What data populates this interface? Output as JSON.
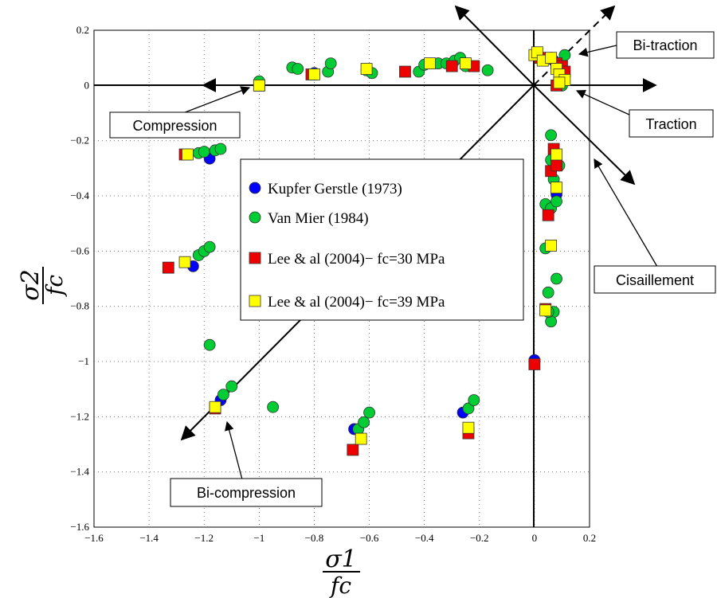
{
  "chart_data": {
    "type": "scatter",
    "xlabel": {
      "num": "σ1",
      "den": "fc"
    },
    "ylabel": {
      "num": "σ2",
      "den": "fc"
    },
    "xlim": [
      -1.6,
      0.2
    ],
    "ylim": [
      -1.6,
      0.2
    ],
    "xticks": [
      "−1.6",
      "−1.4",
      "−1.2",
      "−1",
      "−0.8",
      "−0.6",
      "−0.4",
      "−0.2",
      "0",
      "0.2"
    ],
    "yticks": [
      "0.2",
      "0",
      "−0.2",
      "−0.4",
      "−0.6",
      "−0.8",
      "−1",
      "−1.2",
      "−1.4",
      "−1.6"
    ],
    "grid": true,
    "legend_position": "center",
    "series": [
      {
        "name": "Kupfer Gerstle (1973)",
        "marker": "circle",
        "color": "#0000ff",
        "points": [
          [
            -1.18,
            -0.265
          ],
          [
            -1.24,
            -0.655
          ],
          [
            -1.14,
            -1.14
          ],
          [
            -0.655,
            -1.245
          ],
          [
            -0.26,
            -1.185
          ],
          [
            0,
            -0.995
          ],
          [
            0.08,
            -0.395
          ],
          [
            0.07,
            0.09
          ],
          [
            -0.35,
            0.08
          ],
          [
            -0.8,
            0.045
          ],
          [
            -1.0,
            0.0
          ]
        ]
      },
      {
        "name": "Van Mier (1984)",
        "marker": "circle",
        "color": "#00cc33",
        "points": [
          [
            -1.0,
            0.015
          ],
          [
            -0.88,
            0.065
          ],
          [
            -0.86,
            0.06
          ],
          [
            -0.8,
            0.04
          ],
          [
            -0.75,
            0.05
          ],
          [
            -0.74,
            0.08
          ],
          [
            -0.61,
            0.055
          ],
          [
            -0.59,
            0.045
          ],
          [
            -0.42,
            0.05
          ],
          [
            -0.4,
            0.075
          ],
          [
            -0.35,
            0.08
          ],
          [
            -0.32,
            0.08
          ],
          [
            -0.29,
            0.09
          ],
          [
            -0.27,
            0.1
          ],
          [
            -0.25,
            0.07
          ],
          [
            -0.17,
            0.055
          ],
          [
            -1.22,
            -0.245
          ],
          [
            -1.2,
            -0.24
          ],
          [
            -1.16,
            -0.235
          ],
          [
            -1.14,
            -0.23
          ],
          [
            -1.22,
            -0.615
          ],
          [
            -1.2,
            -0.6
          ],
          [
            -1.18,
            -0.585
          ],
          [
            -1.18,
            -0.94
          ],
          [
            -1.13,
            -1.12
          ],
          [
            -1.1,
            -1.09
          ],
          [
            -0.95,
            -1.165
          ],
          [
            -0.64,
            -1.245
          ],
          [
            -0.62,
            -1.22
          ],
          [
            -0.6,
            -1.185
          ],
          [
            -0.24,
            -1.17
          ],
          [
            -0.22,
            -1.14
          ],
          [
            0.06,
            -0.18
          ],
          [
            0.06,
            -0.27
          ],
          [
            0.09,
            -0.29
          ],
          [
            0.07,
            -0.34
          ],
          [
            0.04,
            -0.43
          ],
          [
            0.06,
            -0.445
          ],
          [
            0.08,
            -0.42
          ],
          [
            0.04,
            -0.59
          ],
          [
            0.08,
            -0.7
          ],
          [
            0.05,
            -0.75
          ],
          [
            0.07,
            -0.82
          ],
          [
            0.06,
            -0.855
          ],
          [
            0.05,
            -0.82
          ],
          [
            0.02,
            0.1
          ],
          [
            0.06,
            0.1
          ],
          [
            0.09,
            0.08
          ],
          [
            0.1,
            0.06
          ],
          [
            0.11,
            0.11
          ],
          [
            0.1,
            0.0
          ]
        ]
      },
      {
        "name": "Lee & al (2004)− fc=30 MPa",
        "marker": "square",
        "color": "#ee0000",
        "points": [
          [
            -1.0,
            0.0
          ],
          [
            -0.81,
            0.04
          ],
          [
            -0.47,
            0.05
          ],
          [
            -0.3,
            0.07
          ],
          [
            -0.22,
            0.07
          ],
          [
            -1.27,
            -0.25
          ],
          [
            -1.33,
            -0.66
          ],
          [
            -1.16,
            -1.17
          ],
          [
            -0.66,
            -1.32
          ],
          [
            -0.24,
            -1.26
          ],
          [
            0.0,
            -1.01
          ],
          [
            0.04,
            -0.81
          ],
          [
            0.05,
            -0.47
          ],
          [
            0.06,
            -0.31
          ],
          [
            0.07,
            -0.23
          ],
          [
            0.08,
            -0.29
          ],
          [
            0.08,
            0.0
          ],
          [
            0.08,
            0.08
          ],
          [
            0.1,
            0.07
          ],
          [
            0.11,
            0.05
          ],
          [
            0.02,
            0.1
          ]
        ]
      },
      {
        "name": "Lee & al (2004)− fc=39 MPa",
        "marker": "square",
        "color": "#ffff00",
        "points": [
          [
            -1.0,
            0.0
          ],
          [
            -0.8,
            0.04
          ],
          [
            -0.61,
            0.06
          ],
          [
            -0.38,
            0.08
          ],
          [
            -0.25,
            0.08
          ],
          [
            -1.26,
            -0.25
          ],
          [
            -1.27,
            -0.64
          ],
          [
            -1.16,
            -1.165
          ],
          [
            -0.63,
            -1.28
          ],
          [
            -0.24,
            -1.24
          ],
          [
            0.04,
            -0.815
          ],
          [
            0.06,
            -0.58
          ],
          [
            0.08,
            -0.37
          ],
          [
            0.08,
            -0.25
          ],
          [
            0.0,
            0.11
          ],
          [
            0.01,
            0.12
          ],
          [
            0.03,
            0.09
          ],
          [
            0.06,
            0.1
          ],
          [
            0.08,
            0.06
          ],
          [
            0.09,
            0.04
          ],
          [
            0.11,
            0.02
          ],
          [
            0.09,
            0.01
          ]
        ]
      }
    ],
    "annotations": [
      {
        "text": "Compression"
      },
      {
        "text": "Bi-traction"
      },
      {
        "text": "Traction"
      },
      {
        "text": "Cisaillement"
      },
      {
        "text": "Bi-compression"
      }
    ]
  }
}
